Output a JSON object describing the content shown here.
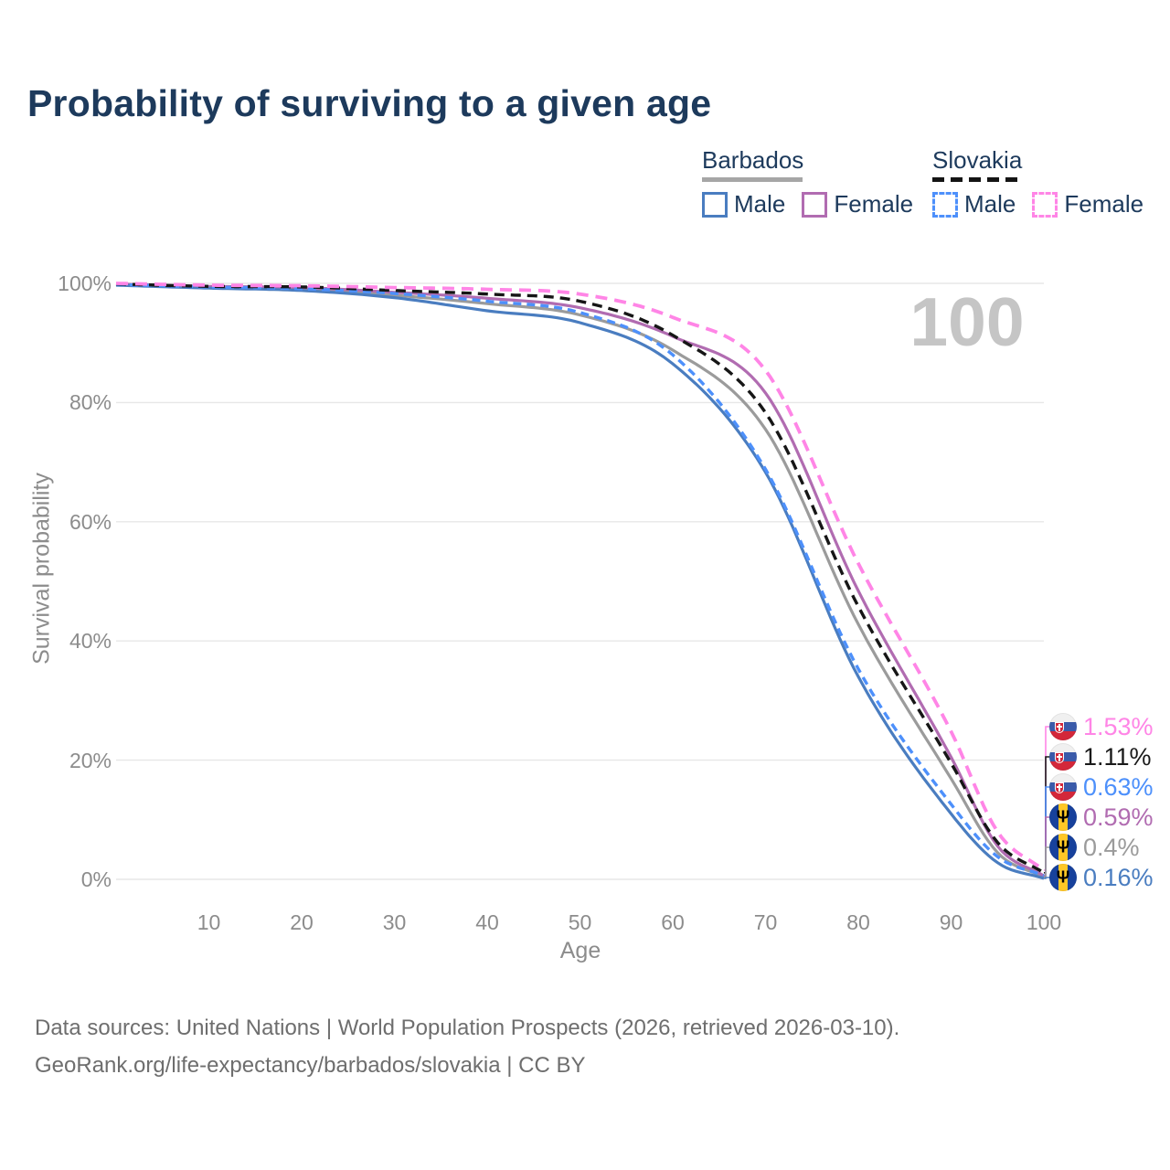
{
  "title": "Probability of surviving to a given age",
  "legend": {
    "groups": [
      {
        "label": "Barbados",
        "line_style": "solid",
        "underline_color": "#a6a6a6",
        "items": [
          {
            "label": "Male",
            "color": "#4a7dc0"
          },
          {
            "label": "Female",
            "color": "#b16cb1"
          }
        ]
      },
      {
        "label": "Slovakia",
        "line_style": "dashed",
        "underline_color": "#141414",
        "items": [
          {
            "label": "Male",
            "color": "#4d90fb"
          },
          {
            "label": "Female",
            "color": "#ff85e6"
          }
        ]
      }
    ]
  },
  "chart_data": {
    "type": "line",
    "title": "Probability of surviving to a given age",
    "xlabel": "Age",
    "ylabel": "Survival probability",
    "xlim": [
      0,
      100
    ],
    "ylim": [
      0,
      100
    ],
    "grid": "horizontal",
    "legend_position": "top-right",
    "watermark": "100",
    "x_ticks": [
      10,
      20,
      30,
      40,
      50,
      60,
      70,
      80,
      90,
      100
    ],
    "y_ticks": [
      {
        "v": 0,
        "label": "0%"
      },
      {
        "v": 20,
        "label": "20%"
      },
      {
        "v": 40,
        "label": "40%"
      },
      {
        "v": 60,
        "label": "60%"
      },
      {
        "v": 80,
        "label": "80%"
      },
      {
        "v": 100,
        "label": "100%"
      }
    ],
    "ages": [
      0,
      10,
      20,
      30,
      40,
      50,
      60,
      70,
      80,
      90,
      95,
      100
    ],
    "series": [
      {
        "key": "barbados_total",
        "name": "Barbados Both sexes",
        "country": "Barbados",
        "sex": "Both",
        "color": "#9b9b9b",
        "dash": null,
        "width": 3.2,
        "values": [
          99.8,
          99.3,
          99.0,
          98.0,
          96.6,
          94.7,
          88.8,
          75.5,
          42.8,
          16.9,
          4.5,
          0.4
        ]
      },
      {
        "key": "barbados_female",
        "name": "Barbados Female",
        "country": "Barbados",
        "sex": "Female",
        "color": "#b16cb1",
        "dash": null,
        "width": 3.2,
        "values": [
          99.9,
          99.5,
          99.3,
          98.5,
          97.5,
          95.9,
          91.1,
          81.6,
          48.4,
          20.5,
          5.6,
          0.59
        ]
      },
      {
        "key": "barbados_male",
        "name": "Barbados Male",
        "country": "Barbados",
        "sex": "Male",
        "color": "#4a7dc0",
        "dash": null,
        "width": 3.2,
        "values": [
          99.7,
          99.2,
          98.8,
          97.6,
          95.4,
          93.4,
          86.5,
          68.3,
          34.0,
          11.0,
          2.8,
          0.16
        ]
      },
      {
        "key": "slovakia_male",
        "name": "Slovakia Male",
        "country": "Slovakia",
        "sex": "Male",
        "color": "#4d90fb",
        "dash": "9 6",
        "width": 3.4,
        "values": [
          99.8,
          99.4,
          99.1,
          98.3,
          97.0,
          95.1,
          88.0,
          68.8,
          35.3,
          12.6,
          3.8,
          0.63
        ]
      },
      {
        "key": "slovakia_total",
        "name": "Slovakia Both sexes",
        "country": "Slovakia",
        "sex": "Both",
        "color": "#161616",
        "dash": "11 7",
        "width": 3.4,
        "values": [
          99.9,
          99.5,
          99.4,
          98.8,
          98.2,
          97.0,
          91.3,
          78.3,
          45.8,
          19.5,
          6.2,
          1.11
        ]
      },
      {
        "key": "slovakia_female",
        "name": "Slovakia Female",
        "country": "Slovakia",
        "sex": "Female",
        "color": "#ff85e6",
        "dash": "13 8",
        "width": 3.8,
        "values": [
          100,
          99.7,
          99.6,
          99.3,
          99.0,
          98.2,
          94.3,
          85.4,
          53.0,
          24.8,
          8.0,
          1.53
        ]
      }
    ]
  },
  "end_labels": [
    {
      "series": "slovakia_female",
      "value": "1.53%",
      "color": "#ff85e6",
      "flag": "slovakia"
    },
    {
      "series": "slovakia_total",
      "value": "1.11%",
      "color": "#1a1a1a",
      "flag": "slovakia"
    },
    {
      "series": "slovakia_male",
      "value": "0.63%",
      "color": "#4d90fb",
      "flag": "slovakia"
    },
    {
      "series": "barbados_female",
      "value": "0.59%",
      "color": "#b16cb1",
      "flag": "barbados"
    },
    {
      "series": "barbados_total",
      "value": "0.4%",
      "color": "#9b9b9b",
      "flag": "barbados"
    },
    {
      "series": "barbados_male",
      "value": "0.16%",
      "color": "#4a7dc0",
      "flag": "barbados"
    }
  ],
  "icons": {
    "trident_glyph": "Ψ"
  },
  "footer": {
    "line1": "Data sources: United Nations | World Population Prospects (2026, retrieved 2026-03-10).",
    "line2": "GeoRank.org/life-expectancy/barbados/slovakia | CC BY"
  }
}
